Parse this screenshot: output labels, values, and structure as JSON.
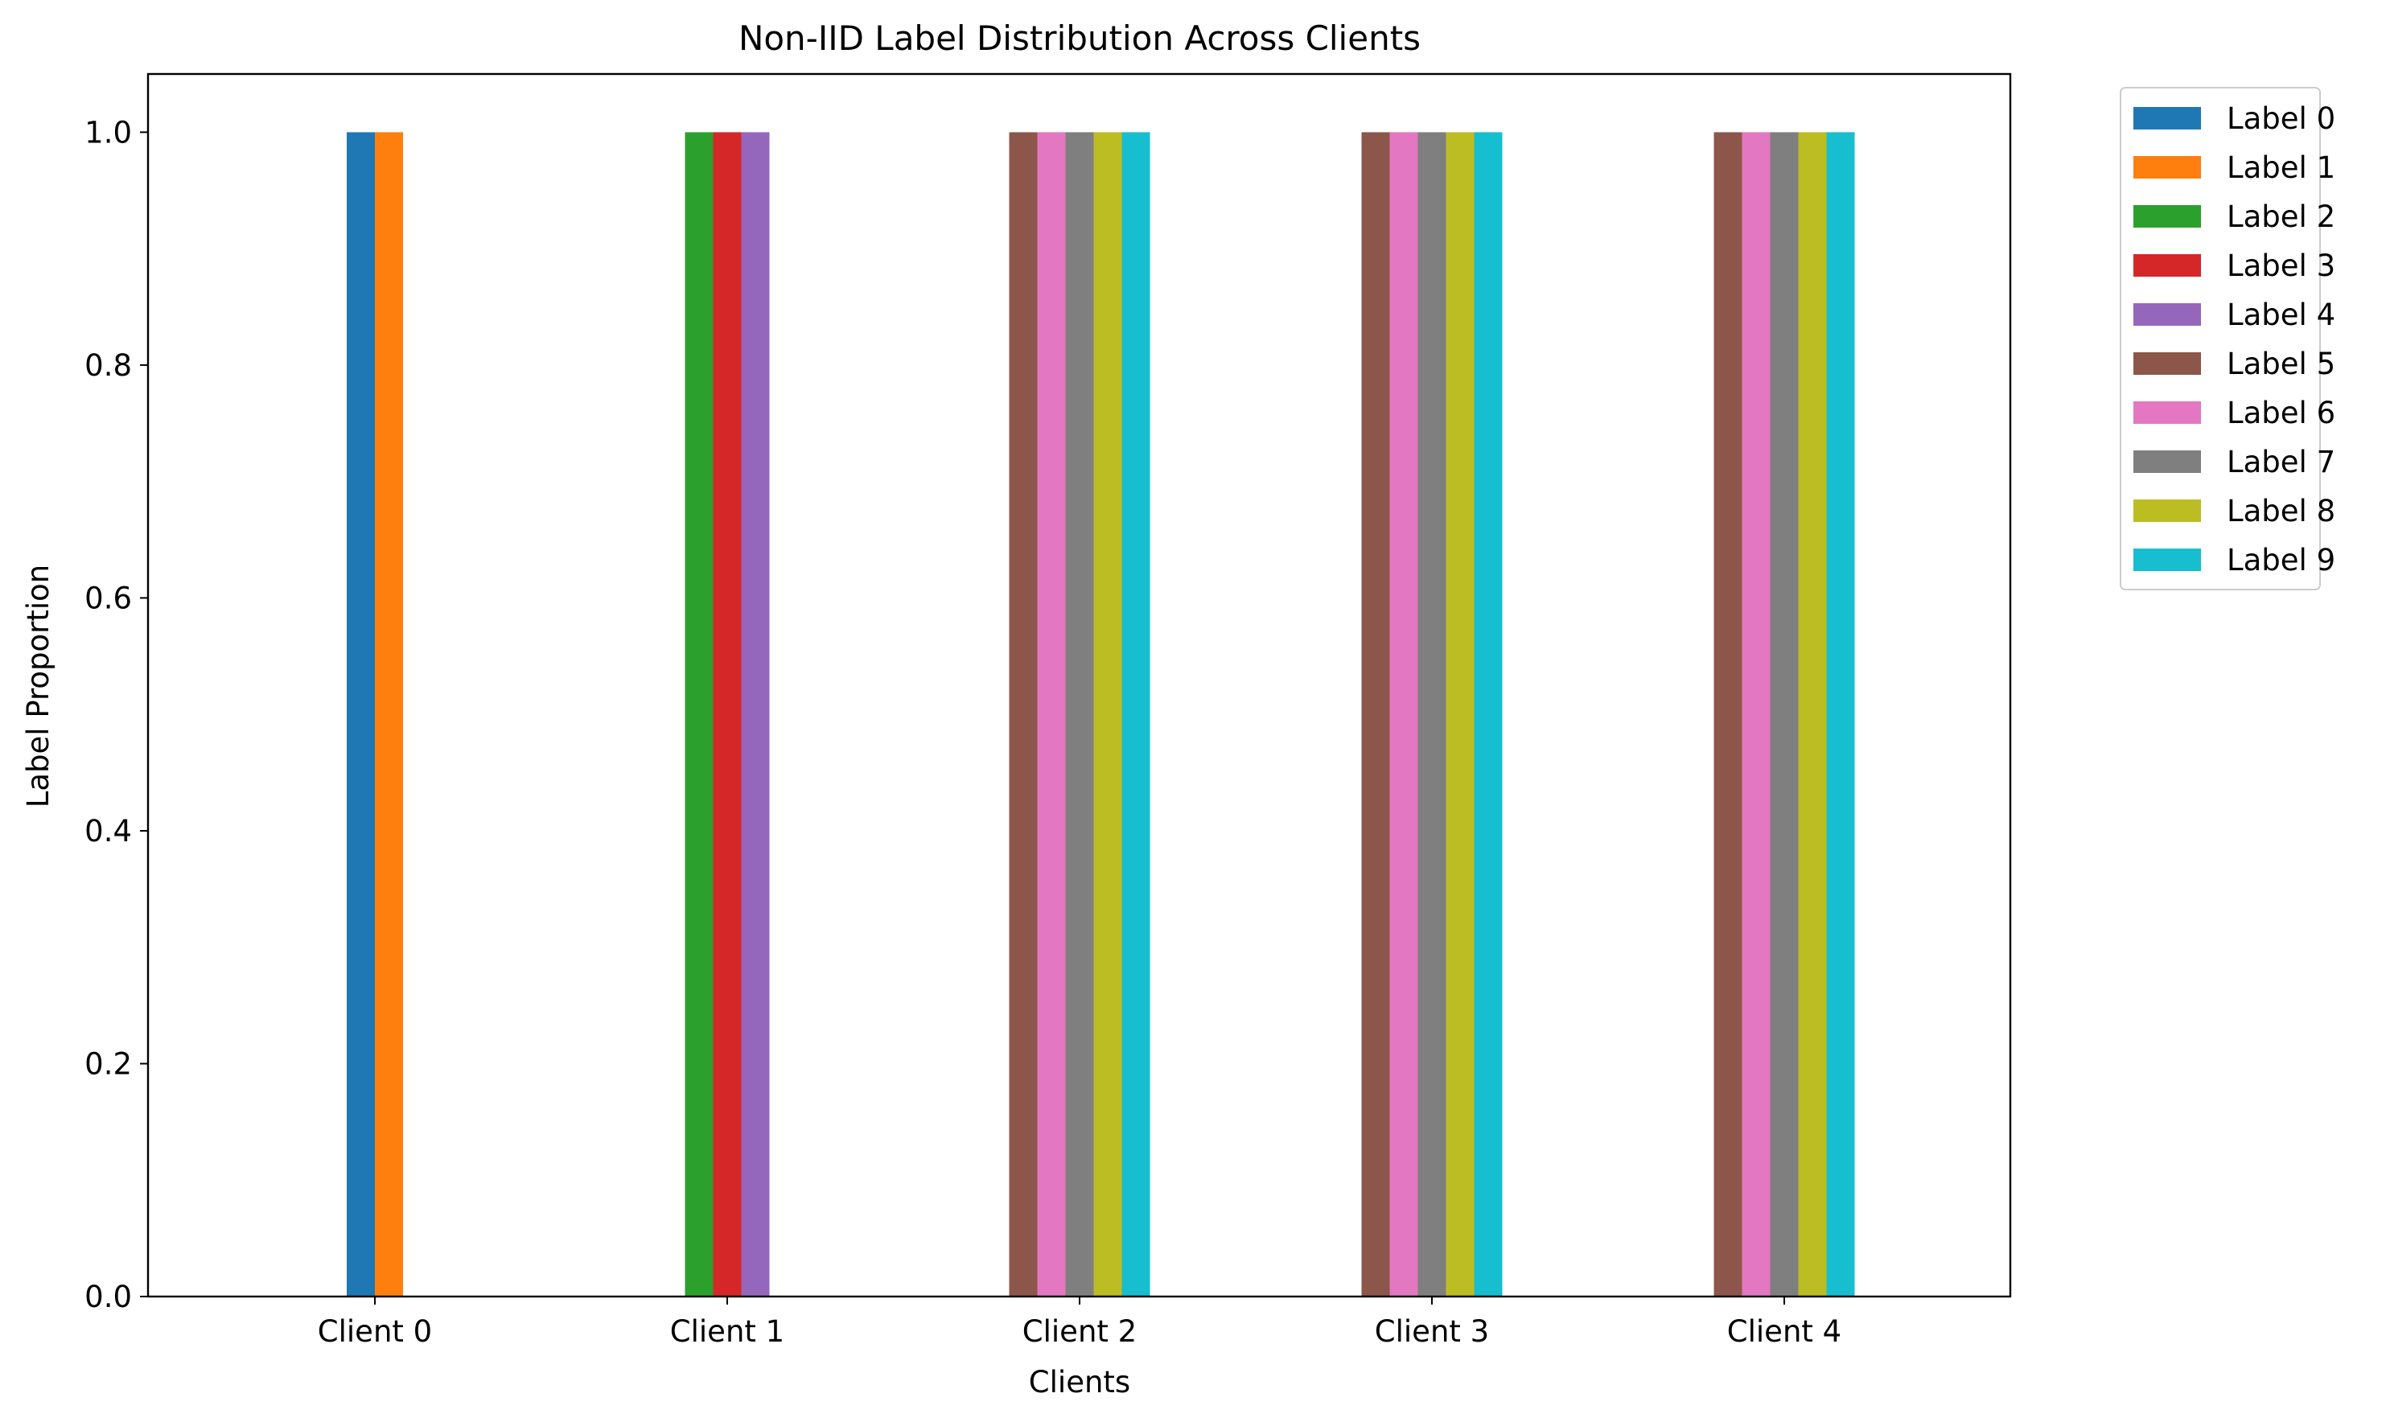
{
  "chart_data": {
    "type": "bar",
    "title": "Non-IID Label Distribution Across Clients",
    "xlabel": "Clients",
    "ylabel": "Label Proportion",
    "categories": [
      "Client 0",
      "Client 1",
      "Client 2",
      "Client 3",
      "Client 4"
    ],
    "ylim": [
      0,
      1.05
    ],
    "yticks": [
      "0.0",
      "0.2",
      "0.4",
      "0.6",
      "0.8",
      "1.0"
    ],
    "legend_position": "outside top-right",
    "grid": false,
    "series": [
      {
        "name": "Label 0",
        "color": "#1f77b4",
        "values": [
          1.0,
          0,
          0,
          0,
          0
        ]
      },
      {
        "name": "Label 1",
        "color": "#ff7f0e",
        "values": [
          1.0,
          0,
          0,
          0,
          0
        ]
      },
      {
        "name": "Label 2",
        "color": "#2ca02c",
        "values": [
          0,
          1.0,
          0,
          0,
          0
        ]
      },
      {
        "name": "Label 3",
        "color": "#d62728",
        "values": [
          0,
          1.0,
          0,
          0,
          0
        ]
      },
      {
        "name": "Label 4",
        "color": "#9467bd",
        "values": [
          0,
          1.0,
          0,
          0,
          0
        ]
      },
      {
        "name": "Label 5",
        "color": "#8c564b",
        "values": [
          0,
          0,
          1.0,
          1.0,
          1.0
        ]
      },
      {
        "name": "Label 6",
        "color": "#e377c2",
        "values": [
          0,
          0,
          1.0,
          1.0,
          1.0
        ]
      },
      {
        "name": "Label 7",
        "color": "#7f7f7f",
        "values": [
          0,
          0,
          1.0,
          1.0,
          1.0
        ]
      },
      {
        "name": "Label 8",
        "color": "#bcbd22",
        "values": [
          0,
          0,
          1.0,
          1.0,
          1.0
        ]
      },
      {
        "name": "Label 9",
        "color": "#17becf",
        "values": [
          0,
          0,
          1.0,
          1.0,
          1.0
        ]
      }
    ]
  }
}
